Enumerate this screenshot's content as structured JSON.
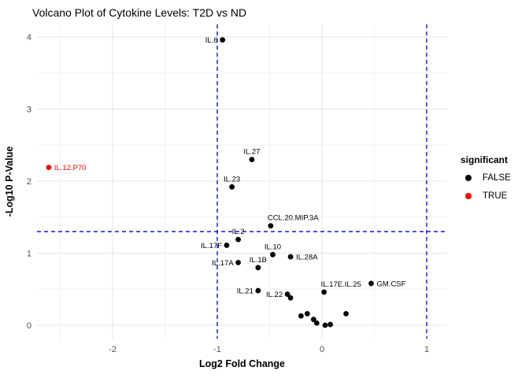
{
  "title": "Volcano Plot of Cytokine Levels: T2D vs ND",
  "chart_data": {
    "type": "scatter",
    "title": "Volcano Plot of Cytokine Levels: T2D vs ND",
    "xlabel": "Log2 Fold Change",
    "ylabel": "-Log10 P-Value",
    "xlim": [
      -2.72,
      1.2
    ],
    "ylim": [
      -0.19,
      4.17
    ],
    "x_ticks": [
      -2,
      -1,
      0,
      1
    ],
    "y_ticks": [
      0,
      1,
      2,
      3,
      4
    ],
    "x_minor_ticks": [
      -2.5,
      -1.5,
      -0.5,
      0.5
    ],
    "y_minor_ticks": [
      0.5,
      1.5,
      2.5,
      3.5
    ],
    "grid": true,
    "legend_position": "right",
    "threshold_lines": {
      "vertical_x": [
        -1,
        1
      ],
      "horizontal_y": 1.3,
      "color": "#0000ee",
      "style": "dashed"
    },
    "legend": {
      "title": "significant",
      "entries": [
        {
          "label": "FALSE",
          "color": "#000000"
        },
        {
          "label": "TRUE",
          "color": "#ff0000"
        }
      ]
    },
    "points": [
      {
        "label": "IL.6",
        "x": -0.95,
        "y": 3.96,
        "significant": false,
        "label_pos": "left"
      },
      {
        "label": "IL.12.P70",
        "x": -2.61,
        "y": 2.19,
        "significant": true,
        "label_pos": "right"
      },
      {
        "label": "IL.27",
        "x": -0.67,
        "y": 2.3,
        "significant": false,
        "label_pos": "above"
      },
      {
        "label": "IL.23",
        "x": -0.86,
        "y": 1.92,
        "significant": false,
        "label_pos": "above"
      },
      {
        "label": "CCL.20.MIP.3A",
        "x": -0.49,
        "y": 1.38,
        "significant": false,
        "label_pos": "above-right"
      },
      {
        "label": "IL.2",
        "x": -0.8,
        "y": 1.19,
        "significant": false,
        "label_pos": "above"
      },
      {
        "label": "IL.17F",
        "x": -0.91,
        "y": 1.11,
        "significant": false,
        "label_pos": "left"
      },
      {
        "label": "IL.10",
        "x": -0.47,
        "y": 0.98,
        "significant": false,
        "label_pos": "above"
      },
      {
        "label": "IL.28A",
        "x": -0.3,
        "y": 0.95,
        "significant": false,
        "label_pos": "right"
      },
      {
        "label": "IL.17A",
        "x": -0.8,
        "y": 0.87,
        "significant": false,
        "label_pos": "left"
      },
      {
        "label": "IL.1B",
        "x": -0.61,
        "y": 0.8,
        "significant": false,
        "label_pos": "above"
      },
      {
        "label": "IL.21",
        "x": -0.61,
        "y": 0.48,
        "significant": false,
        "label_pos": "left"
      },
      {
        "label": "IL.22",
        "x": -0.33,
        "y": 0.43,
        "significant": false,
        "label_pos": "left"
      },
      {
        "label": "",
        "x": -0.3,
        "y": 0.38,
        "significant": false,
        "label_pos": "none"
      },
      {
        "label": "IL.17E.IL.25",
        "x": 0.02,
        "y": 0.46,
        "significant": false,
        "label_pos": "above-right"
      },
      {
        "label": "GM.CSF",
        "x": 0.47,
        "y": 0.58,
        "significant": false,
        "label_pos": "right"
      },
      {
        "label": "",
        "x": -0.2,
        "y": 0.13,
        "significant": false,
        "label_pos": "none"
      },
      {
        "label": "",
        "x": -0.14,
        "y": 0.16,
        "significant": false,
        "label_pos": "none"
      },
      {
        "label": "",
        "x": -0.08,
        "y": 0.08,
        "significant": false,
        "label_pos": "none"
      },
      {
        "label": "",
        "x": -0.05,
        "y": 0.03,
        "significant": false,
        "label_pos": "none"
      },
      {
        "label": "",
        "x": 0.03,
        "y": 0.0,
        "significant": false,
        "label_pos": "none"
      },
      {
        "label": "",
        "x": 0.08,
        "y": 0.01,
        "significant": false,
        "label_pos": "none"
      },
      {
        "label": "",
        "x": 0.23,
        "y": 0.16,
        "significant": false,
        "label_pos": "none"
      }
    ]
  },
  "colors": {
    "point_false": "#000000",
    "point_true": "#ff0000",
    "threshold": "#0000ee",
    "grid_major": "#e4e4e4",
    "grid_minor": "#f0f0f0",
    "tick_label": "#4d4d4d",
    "text": "#000000"
  }
}
